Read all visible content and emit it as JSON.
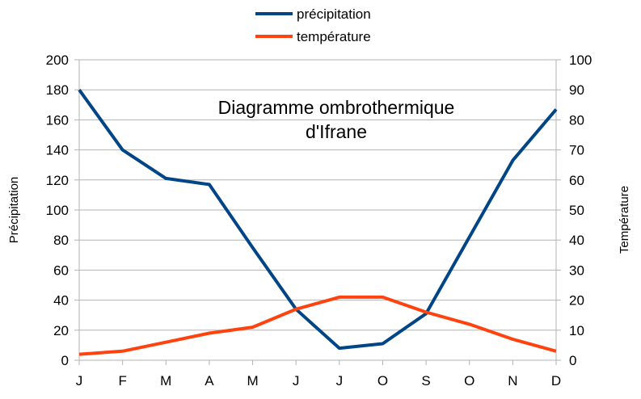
{
  "chart_data": {
    "type": "line",
    "title": [
      "Diagramme ombrothermique",
      "d'Ifrane"
    ],
    "categories": [
      "J",
      "F",
      "M",
      "A",
      "M",
      "J",
      "J",
      "O",
      "S",
      "O",
      "N",
      "D"
    ],
    "series": [
      {
        "name": "précipitation",
        "axis": "left",
        "color": "#004586",
        "values": [
          180,
          140,
          121,
          117,
          75,
          34,
          8,
          11,
          31,
          82,
          133,
          167
        ]
      },
      {
        "name": "température",
        "axis": "right",
        "color": "#ff420e",
        "values": [
          2,
          3,
          6,
          9,
          11,
          17,
          21,
          21,
          16,
          12,
          7,
          3
        ]
      }
    ],
    "ylabel_left": "Précipitation",
    "ylabel_right": "Température",
    "ylim_left": [
      0,
      200
    ],
    "yticks_left": [
      0,
      20,
      40,
      60,
      80,
      100,
      120,
      140,
      160,
      180,
      200
    ],
    "ylim_right": [
      0,
      100
    ],
    "yticks_right": [
      0,
      10,
      20,
      30,
      40,
      50,
      60,
      70,
      80,
      90,
      100
    ],
    "grid": true,
    "gridline_color": "#b3b3b3",
    "legend_position": "top"
  }
}
